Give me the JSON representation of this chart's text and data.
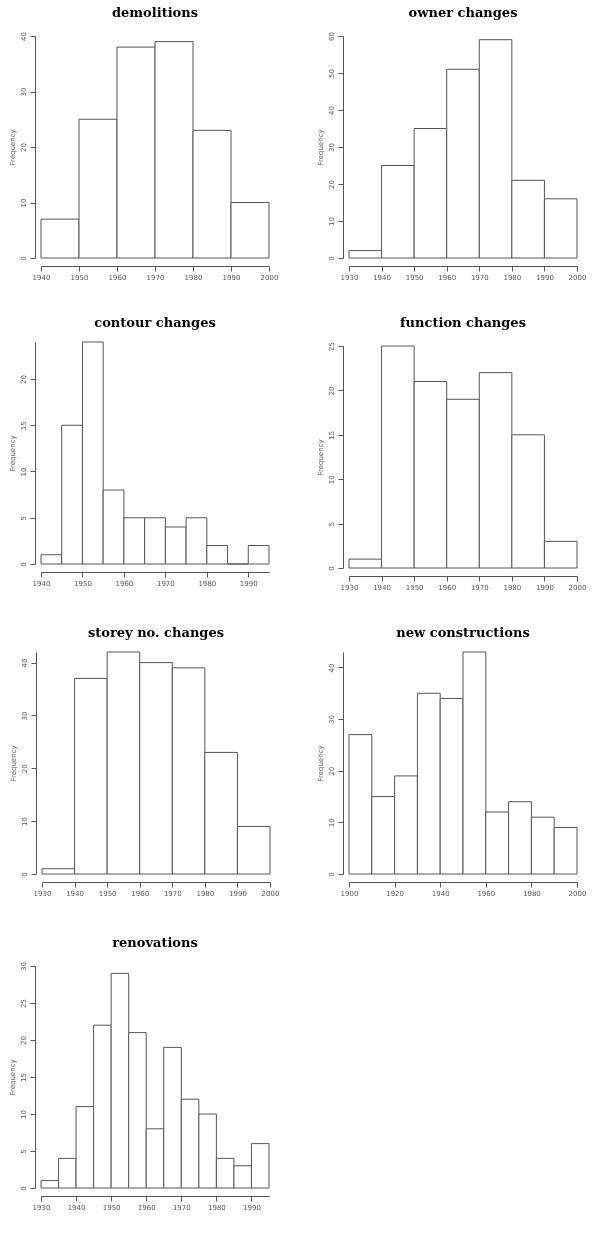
{
  "chart_data": [
    {
      "type": "histogram",
      "title": "demolitions",
      "ylabel": "Frequency",
      "bins": [
        1940,
        1950,
        1960,
        1970,
        1980,
        1990,
        2000
      ],
      "values": [
        7,
        25,
        38,
        39,
        23,
        10
      ],
      "xlim": [
        1940,
        2000
      ],
      "xticks": [
        1940,
        1950,
        1960,
        1970,
        1980,
        1990,
        2000
      ],
      "ylim": [
        0,
        40
      ],
      "yticks": [
        0,
        10,
        20,
        30,
        40
      ]
    },
    {
      "type": "histogram",
      "title": "owner changes",
      "ylabel": "Frequency",
      "bins": [
        1930,
        1940,
        1950,
        1960,
        1970,
        1980,
        1990,
        2000
      ],
      "values": [
        2,
        25,
        35,
        51,
        59,
        21,
        16
      ],
      "xlim": [
        1930,
        2000
      ],
      "xticks": [
        1930,
        1940,
        1950,
        1960,
        1970,
        1980,
        1990,
        2000
      ],
      "ylim": [
        0,
        60
      ],
      "yticks": [
        0,
        10,
        20,
        30,
        40,
        50,
        60
      ]
    },
    {
      "type": "histogram",
      "title": "contour changes",
      "ylabel": "Frequency",
      "bins": [
        1940,
        1945,
        1950,
        1955,
        1960,
        1965,
        1970,
        1975,
        1980,
        1985,
        1990,
        1995
      ],
      "values": [
        1,
        15,
        24,
        8,
        5,
        5,
        4,
        5,
        2,
        0,
        2
      ],
      "xlim": [
        1940,
        1995
      ],
      "xticks": [
        1940,
        1950,
        1960,
        1970,
        1980,
        1990
      ],
      "ylim": [
        0,
        24
      ],
      "yticks": [
        0,
        5,
        10,
        15,
        20
      ]
    },
    {
      "type": "histogram",
      "title": "function changes",
      "ylabel": "Frequency",
      "bins": [
        1930,
        1940,
        1950,
        1960,
        1970,
        1980,
        1990,
        2000
      ],
      "values": [
        1,
        25,
        21,
        19,
        22,
        15,
        3
      ],
      "xlim": [
        1930,
        2000
      ],
      "xticks": [
        1930,
        1940,
        1950,
        1960,
        1970,
        1980,
        1990,
        2000
      ],
      "ylim": [
        0,
        25
      ],
      "yticks": [
        0,
        5,
        10,
        15,
        20,
        25
      ]
    },
    {
      "type": "histogram",
      "title": "storey no. changes",
      "ylabel": "Frequency",
      "bins": [
        1930,
        1940,
        1950,
        1960,
        1970,
        1980,
        1990,
        2000
      ],
      "values": [
        1,
        37,
        42,
        40,
        39,
        23,
        9
      ],
      "xlim": [
        1930,
        2000
      ],
      "xticks": [
        1930,
        1940,
        1950,
        1960,
        1970,
        1980,
        1990,
        2000
      ],
      "ylim": [
        0,
        42
      ],
      "yticks": [
        0,
        10,
        20,
        30,
        40
      ]
    },
    {
      "type": "histogram",
      "title": "new constructions",
      "ylabel": "Frequency",
      "bins": [
        1900,
        1910,
        1920,
        1930,
        1940,
        1950,
        1960,
        1970,
        1980,
        1990,
        2000
      ],
      "values": [
        27,
        15,
        19,
        35,
        34,
        43,
        12,
        14,
        11,
        9
      ],
      "xlim": [
        1900,
        2000
      ],
      "xticks": [
        1900,
        1920,
        1940,
        1960,
        1980,
        2000
      ],
      "ylim": [
        0,
        43
      ],
      "yticks": [
        0,
        10,
        20,
        30,
        40
      ]
    },
    {
      "type": "histogram",
      "title": "renovations",
      "ylabel": "Frequency",
      "bins": [
        1930,
        1935,
        1940,
        1945,
        1950,
        1955,
        1960,
        1965,
        1970,
        1975,
        1980,
        1985,
        1990,
        1995
      ],
      "values": [
        1,
        4,
        11,
        22,
        29,
        21,
        8,
        19,
        12,
        10,
        4,
        3,
        6
      ],
      "xlim": [
        1930,
        1995
      ],
      "xticks": [
        1930,
        1940,
        1950,
        1960,
        1970,
        1980,
        1990
      ],
      "ylim": [
        0,
        30
      ],
      "yticks": [
        0,
        5,
        10,
        15,
        20,
        25,
        30
      ]
    }
  ]
}
